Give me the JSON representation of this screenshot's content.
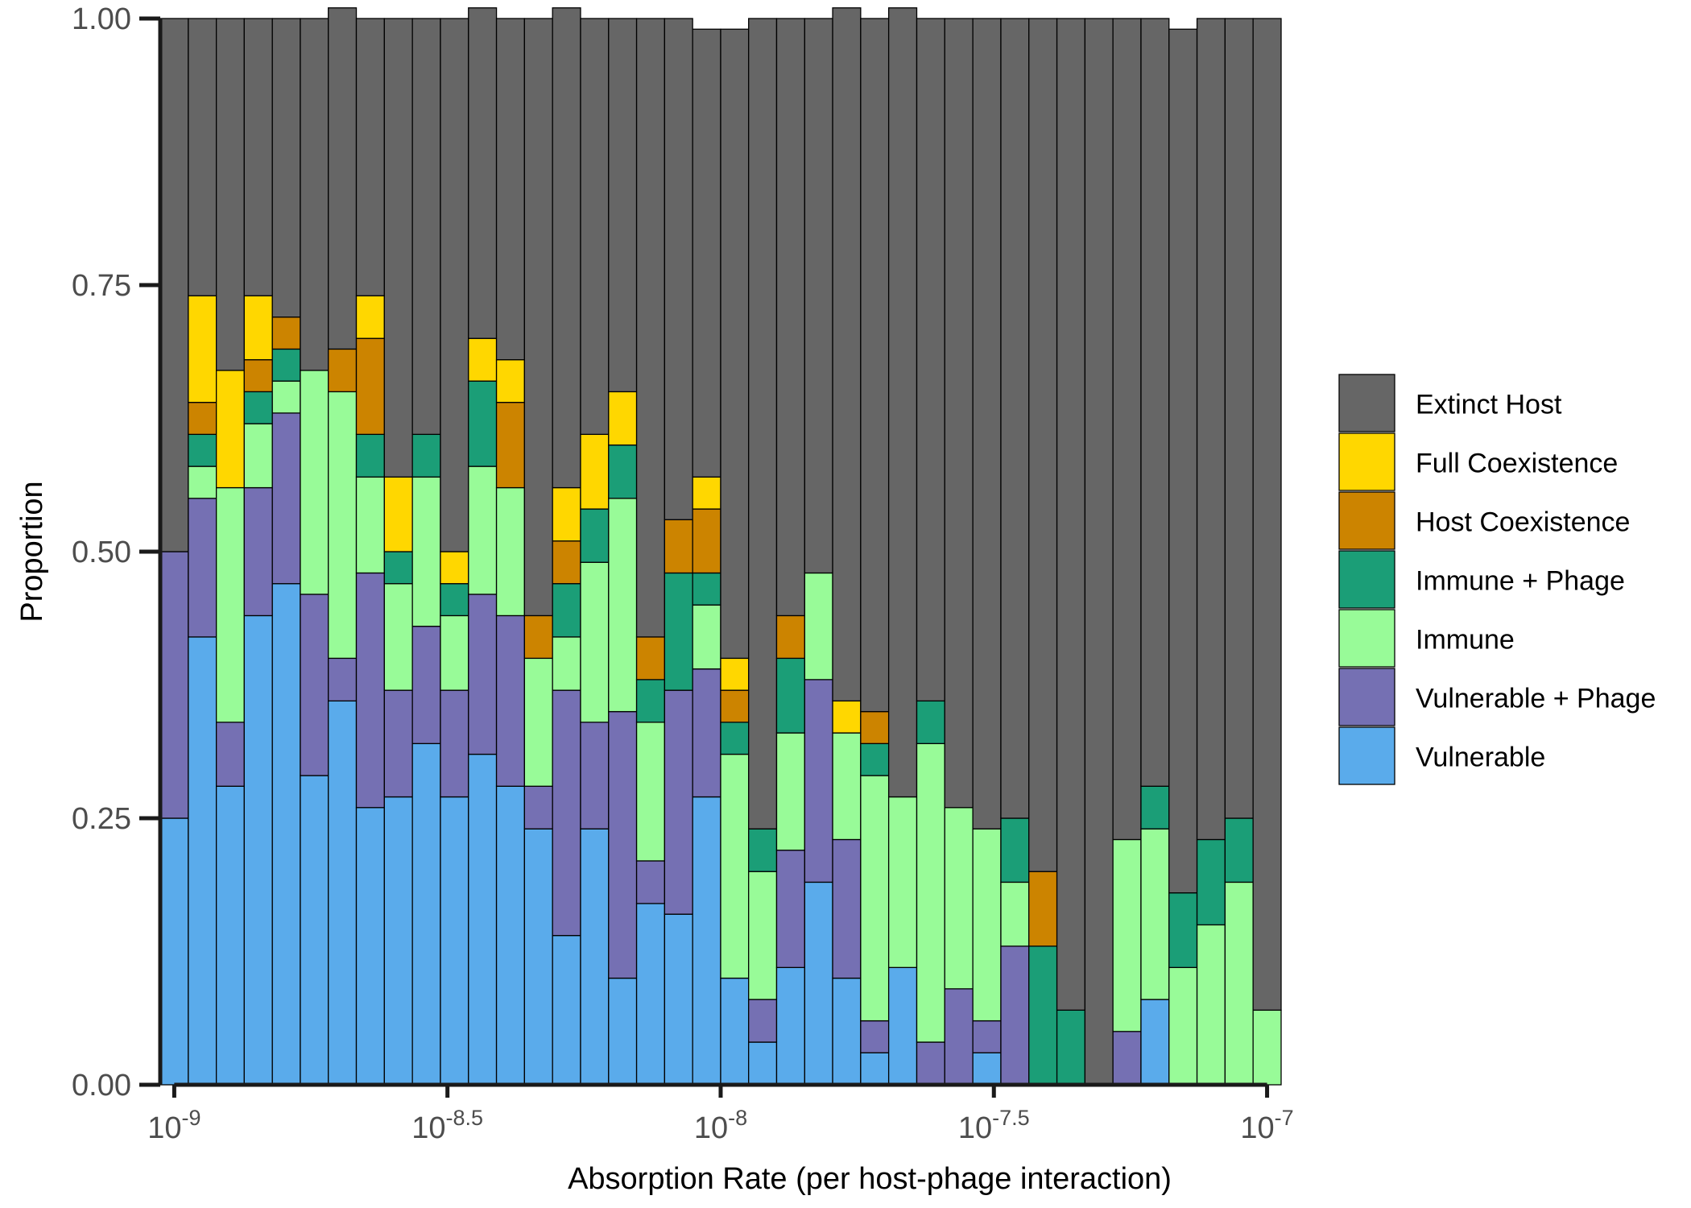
{
  "chart_data": {
    "type": "histogram",
    "stacked": true,
    "xscale": "log",
    "x_label": "Absorption Rate (per host-phage interaction)",
    "y_label": "Proportion",
    "bins": [
      9.427e-10,
      1.061e-09,
      1.194e-09,
      1.343e-09,
      1.512e-09,
      1.701e-09,
      1.914e-09,
      2.154e-09,
      2.424e-09,
      2.728e-09,
      3.07e-09,
      3.455e-09,
      3.888e-09,
      4.375e-09,
      4.924e-09,
      5.541e-09,
      6.236e-09,
      7.017e-09,
      7.896e-09,
      8.886e-09,
      1e-08,
      1.125e-08,
      1.266e-08,
      1.425e-08,
      1.603e-08,
      1.804e-08,
      2.03e-08,
      2.285e-08,
      2.571e-08,
      2.894e-08,
      3.257e-08,
      3.665e-08,
      4.125e-08,
      4.642e-08,
      5.223e-08,
      5.878e-08,
      6.615e-08,
      7.444e-08,
      8.377e-08,
      9.427e-08,
      1.061e-07
    ],
    "series": [
      {
        "name": "Vulnerable",
        "color": "#5aabeb",
        "values": [
          0.25,
          0.42,
          0.28,
          0.44,
          0.47,
          0.29,
          0.36,
          0.26,
          0.27,
          0.32,
          0.27,
          0.31,
          0.28,
          0.24,
          0.14,
          0.24,
          0.1,
          0.17,
          0.16,
          0.27,
          0.1,
          0.04,
          0.11,
          0.19,
          0.1,
          0.03,
          0.11,
          0,
          0,
          0.03,
          0,
          0,
          0,
          0,
          0,
          0.08,
          0,
          0,
          0,
          0
        ]
      },
      {
        "name": "Vulnerable + Phage",
        "color": "#7570b3",
        "values": [
          0.25,
          0.13,
          0.06,
          0.12,
          0.16,
          0.17,
          0.04,
          0.22,
          0.1,
          0.11,
          0.1,
          0.15,
          0.16,
          0.04,
          0.23,
          0.1,
          0.25,
          0.04,
          0.21,
          0.12,
          0,
          0.04,
          0.11,
          0.19,
          0.13,
          0.03,
          0,
          0.04,
          0.09,
          0.03,
          0.13,
          0,
          0,
          0,
          0.05,
          0,
          0,
          0,
          0,
          0
        ]
      },
      {
        "name": "Immune",
        "color": "#98fb98",
        "values": [
          0,
          0.03,
          0.22,
          0.06,
          0.03,
          0.21,
          0.25,
          0.09,
          0.1,
          0.14,
          0.07,
          0.12,
          0.12,
          0.12,
          0.05,
          0.15,
          0.2,
          0.13,
          0,
          0.06,
          0.21,
          0.12,
          0.11,
          0.1,
          0.1,
          0.23,
          0.16,
          0.28,
          0.17,
          0.18,
          0.06,
          0,
          0,
          0,
          0.18,
          0.16,
          0.11,
          0.15,
          0.19,
          0.07
        ]
      },
      {
        "name": "Immune + Phage",
        "color": "#1b9e77",
        "values": [
          0,
          0.03,
          0,
          0.03,
          0.03,
          0,
          0,
          0.04,
          0.03,
          0.04,
          0.03,
          0.08,
          0,
          0,
          0.05,
          0.05,
          0.05,
          0.04,
          0.11,
          0.03,
          0.03,
          0.04,
          0.07,
          0,
          0,
          0.03,
          0,
          0.04,
          0,
          0,
          0.06,
          0.13,
          0.07,
          0,
          0,
          0.04,
          0.07,
          0.08,
          0.06,
          0
        ]
      },
      {
        "name": "Host Coexistence",
        "color": "#cc8400",
        "values": [
          0,
          0.03,
          0,
          0.03,
          0.03,
          0,
          0.04,
          0.09,
          0,
          0,
          0,
          0,
          0.08,
          0.04,
          0.04,
          0,
          0,
          0.04,
          0.05,
          0.06,
          0.03,
          0,
          0.04,
          0,
          0,
          0.03,
          0,
          0,
          0,
          0,
          0,
          0.07,
          0,
          0,
          0,
          0,
          0,
          0,
          0,
          0
        ]
      },
      {
        "name": "Full Coexistence",
        "color": "#ffd700",
        "values": [
          0,
          0.1,
          0.11,
          0.06,
          0,
          0,
          0,
          0.04,
          0.07,
          0,
          0.03,
          0.04,
          0.04,
          0,
          0.05,
          0.07,
          0.05,
          0,
          0,
          0.03,
          0.03,
          0,
          0,
          0,
          0.03,
          0,
          0,
          0,
          0,
          0,
          0,
          0,
          0,
          0,
          0,
          0,
          0,
          0,
          0,
          0
        ]
      },
      {
        "name": "Extinct Host",
        "color": "#666666",
        "values": [
          0.5,
          0.26,
          0.33,
          0.26,
          0.28,
          0.33,
          0.32,
          0.26,
          0.43,
          0.39,
          0.5,
          0.31,
          0.32,
          0.56,
          0.45,
          0.39,
          0.35,
          0.58,
          0.47,
          0.42,
          0.59,
          0.76,
          0.56,
          0.52,
          0.65,
          0.65,
          0.74,
          0.64,
          0.74,
          0.76,
          0.75,
          0.8,
          0.93,
          1.0,
          0.77,
          0.72,
          0.81,
          0.77,
          0.75,
          0.93
        ]
      }
    ],
    "xlim": [
      9.427e-10,
      1.061e-07
    ],
    "xticks": [
      {
        "value": 1e-09,
        "label": "10",
        "exponent": "-9"
      },
      {
        "value": 3.1623e-09,
        "label": "10",
        "exponent": "-8.5"
      },
      {
        "value": 1e-08,
        "label": "10",
        "exponent": "-8"
      },
      {
        "value": 3.1623e-08,
        "label": "10",
        "exponent": "-7.5"
      },
      {
        "value": 1e-07,
        "label": "10",
        "exponent": "-7"
      }
    ],
    "ylim": [
      0,
      1
    ],
    "yticks": [
      {
        "value": 0,
        "label": "0.00"
      },
      {
        "value": 0.25,
        "label": "0.25"
      },
      {
        "value": 0.5,
        "label": "0.50"
      },
      {
        "value": 0.75,
        "label": "0.75"
      },
      {
        "value": 1,
        "label": "1.00"
      }
    ],
    "legend": "right"
  }
}
